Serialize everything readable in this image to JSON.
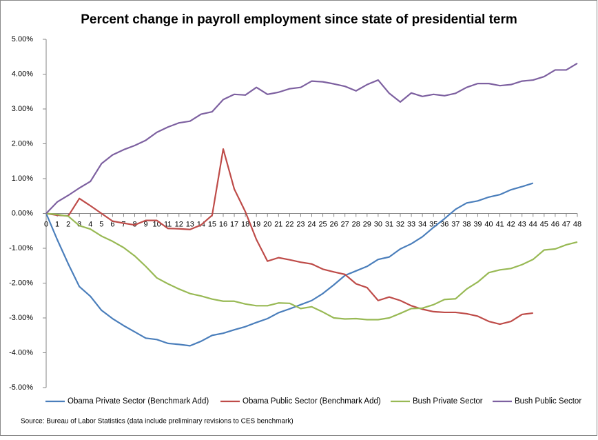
{
  "chart_data": {
    "type": "line",
    "title": "Percent change in payroll employment since state of presidential term",
    "source": "Source: Bureau of Labor Statistics (data include preliminary revisions to CES benchmark)",
    "x": [
      0,
      1,
      2,
      3,
      4,
      5,
      6,
      7,
      8,
      9,
      10,
      11,
      12,
      13,
      14,
      15,
      16,
      17,
      18,
      19,
      20,
      21,
      22,
      23,
      24,
      25,
      26,
      27,
      28,
      29,
      30,
      31,
      32,
      33,
      34,
      35,
      36,
      37,
      38,
      39,
      40,
      41,
      42,
      43,
      44,
      45,
      46,
      47,
      48
    ],
    "xlim": [
      0,
      48
    ],
    "ylim": [
      -5,
      5
    ],
    "yticks": [
      {
        "value": 5,
        "label": "5.00%"
      },
      {
        "value": 4,
        "label": "4.00%"
      },
      {
        "value": 3,
        "label": "3.00%"
      },
      {
        "value": 2,
        "label": "2.00%"
      },
      {
        "value": 1,
        "label": "1.00%"
      },
      {
        "value": 0,
        "label": "0.00%"
      },
      {
        "value": -1,
        "label": "-1.00%"
      },
      {
        "value": -2,
        "label": "-2.00%"
      },
      {
        "value": -3,
        "label": "-3.00%"
      },
      {
        "value": -4,
        "label": "-4.00%"
      },
      {
        "value": -5,
        "label": "-5.00%"
      }
    ],
    "legend": "bottom",
    "series": [
      {
        "name": "Obama Private Sector (Benchmark Add)",
        "color": "#4a7ebb",
        "values": [
          0,
          -0.75,
          -1.45,
          -2.1,
          -2.38,
          -2.78,
          -3.02,
          -3.22,
          -3.4,
          -3.58,
          -3.62,
          -3.73,
          -3.76,
          -3.8,
          -3.67,
          -3.5,
          -3.44,
          -3.34,
          -3.25,
          -3.13,
          -3.02,
          -2.85,
          -2.74,
          -2.62,
          -2.5,
          -2.3,
          -2.05,
          -1.78,
          -1.65,
          -1.52,
          -1.32,
          -1.25,
          -1.02,
          -0.87,
          -0.67,
          -0.4,
          -0.15,
          0.12,
          0.3,
          0.36,
          0.47,
          0.54,
          0.68,
          0.77,
          0.87,
          null,
          null,
          null,
          null
        ]
      },
      {
        "name": "Obama Public Sector (Benchmark Add)",
        "color": "#be4b48",
        "values": [
          0,
          -0.05,
          -0.07,
          0.43,
          0.22,
          0,
          -0.22,
          -0.28,
          -0.33,
          -0.2,
          -0.2,
          -0.43,
          -0.44,
          -0.46,
          -0.33,
          -0.05,
          1.85,
          0.7,
          0.05,
          -0.75,
          -1.37,
          -1.27,
          -1.33,
          -1.4,
          -1.45,
          -1.6,
          -1.68,
          -1.75,
          -2.02,
          -2.13,
          -2.5,
          -2.4,
          -2.5,
          -2.65,
          -2.75,
          -2.82,
          -2.84,
          -2.84,
          -2.88,
          -2.95,
          -3.1,
          -3.18,
          -3.1,
          -2.9,
          -2.86,
          null,
          null,
          null,
          null
        ]
      },
      {
        "name": "Bush Private Sector",
        "color": "#98b954",
        "values": [
          0,
          -0.03,
          -0.08,
          -0.35,
          -0.45,
          -0.65,
          -0.8,
          -0.98,
          -1.22,
          -1.52,
          -1.85,
          -2.02,
          -2.17,
          -2.3,
          -2.37,
          -2.46,
          -2.52,
          -2.52,
          -2.6,
          -2.65,
          -2.65,
          -2.57,
          -2.58,
          -2.73,
          -2.68,
          -2.83,
          -3.0,
          -3.03,
          -3.02,
          -3.05,
          -3.05,
          -3.0,
          -2.87,
          -2.73,
          -2.72,
          -2.62,
          -2.47,
          -2.45,
          -2.17,
          -1.97,
          -1.7,
          -1.62,
          -1.58,
          -1.47,
          -1.32,
          -1.05,
          -1.02,
          -0.9,
          -0.82
        ]
      },
      {
        "name": "Bush Public Sector",
        "color": "#7d60a0",
        "values": [
          0,
          0.33,
          0.52,
          0.73,
          0.92,
          1.43,
          1.68,
          1.83,
          1.95,
          2.1,
          2.33,
          2.48,
          2.6,
          2.65,
          2.85,
          2.92,
          3.27,
          3.42,
          3.4,
          3.62,
          3.42,
          3.48,
          3.58,
          3.62,
          3.8,
          3.78,
          3.72,
          3.65,
          3.52,
          3.7,
          3.83,
          3.45,
          3.2,
          3.46,
          3.36,
          3.42,
          3.38,
          3.45,
          3.62,
          3.73,
          3.73,
          3.67,
          3.7,
          3.8,
          3.83,
          3.93,
          4.12,
          4.12,
          4.31
        ]
      }
    ]
  }
}
